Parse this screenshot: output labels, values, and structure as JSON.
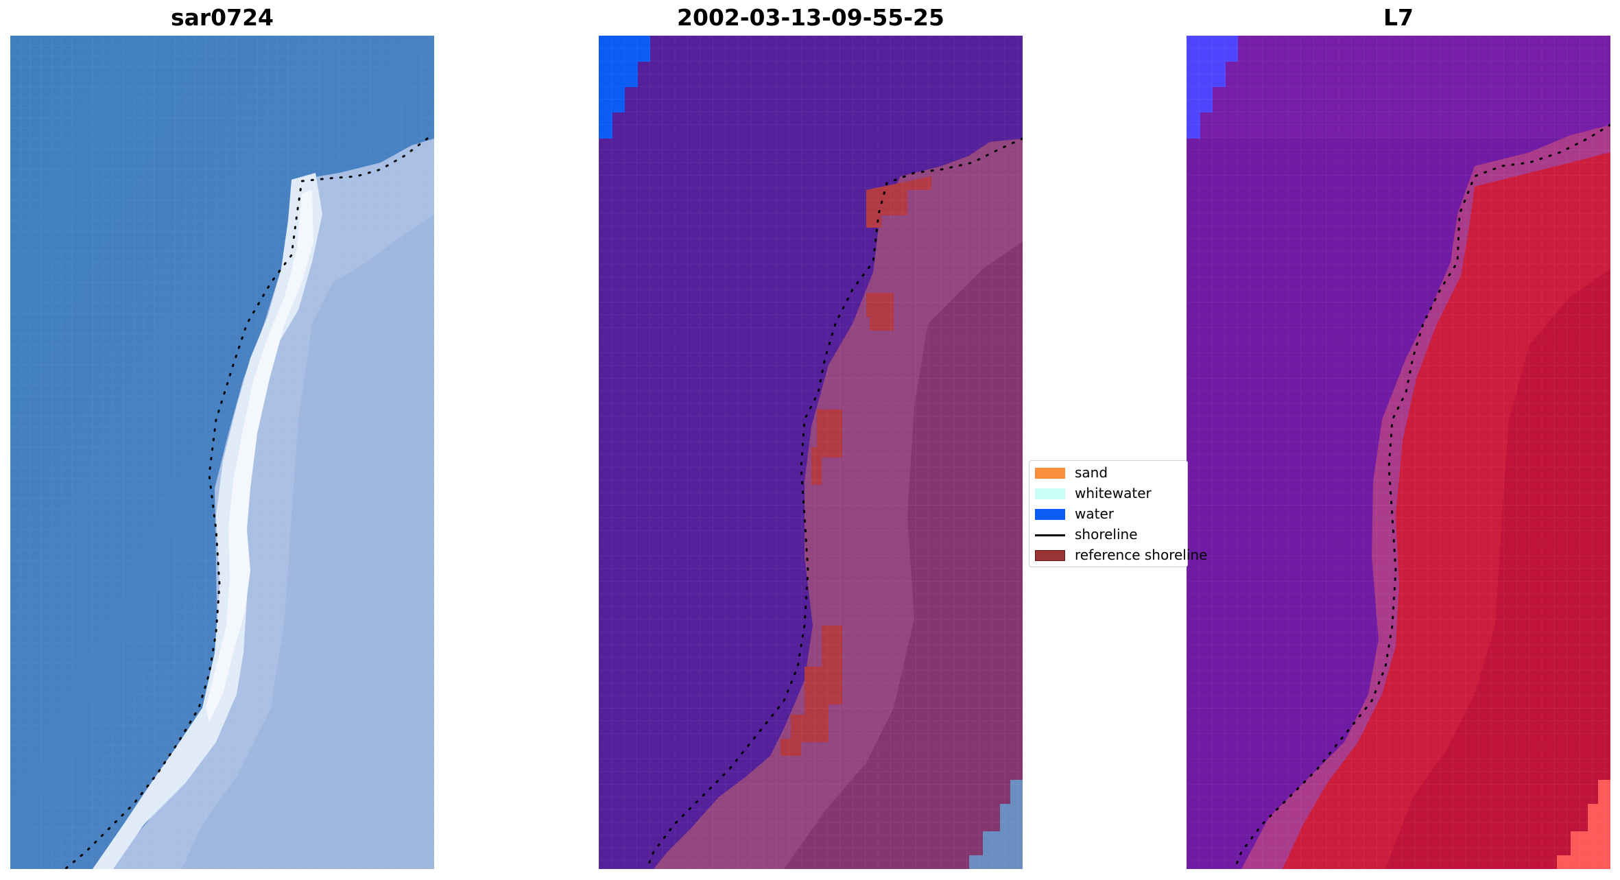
{
  "panels": [
    {
      "title": "sar0724"
    },
    {
      "title": "2002-03-13-09-55-25"
    },
    {
      "title": "L7"
    }
  ],
  "legend": {
    "items": [
      {
        "label": "sand",
        "color": "#f98e3c",
        "kind": "patch"
      },
      {
        "label": "whitewater",
        "color": "#ccfff7",
        "kind": "patch"
      },
      {
        "label": "water",
        "color": "#0a5cf5",
        "kind": "patch"
      },
      {
        "label": "shoreline",
        "color": "#000000",
        "kind": "line"
      },
      {
        "label": "reference shoreline",
        "color": "#9a3434",
        "kind": "patch"
      }
    ]
  },
  "colors": {
    "rgb_water": "#4a80bd",
    "rgb_sand": "#c9d7ee",
    "rgb_foam": "#eef4fb",
    "class_background": "#55219a",
    "class_land": "#93467f",
    "class_reference": "#b23a44",
    "class_water": "#0a5cf5",
    "class_corner_water": "#6b8ec0",
    "index_low": "#6a17a6",
    "index_mid": "#a93b8a",
    "index_high": "#cc1d3c",
    "index_water": "#4e45ff",
    "index_peak": "#ff5a5a"
  }
}
